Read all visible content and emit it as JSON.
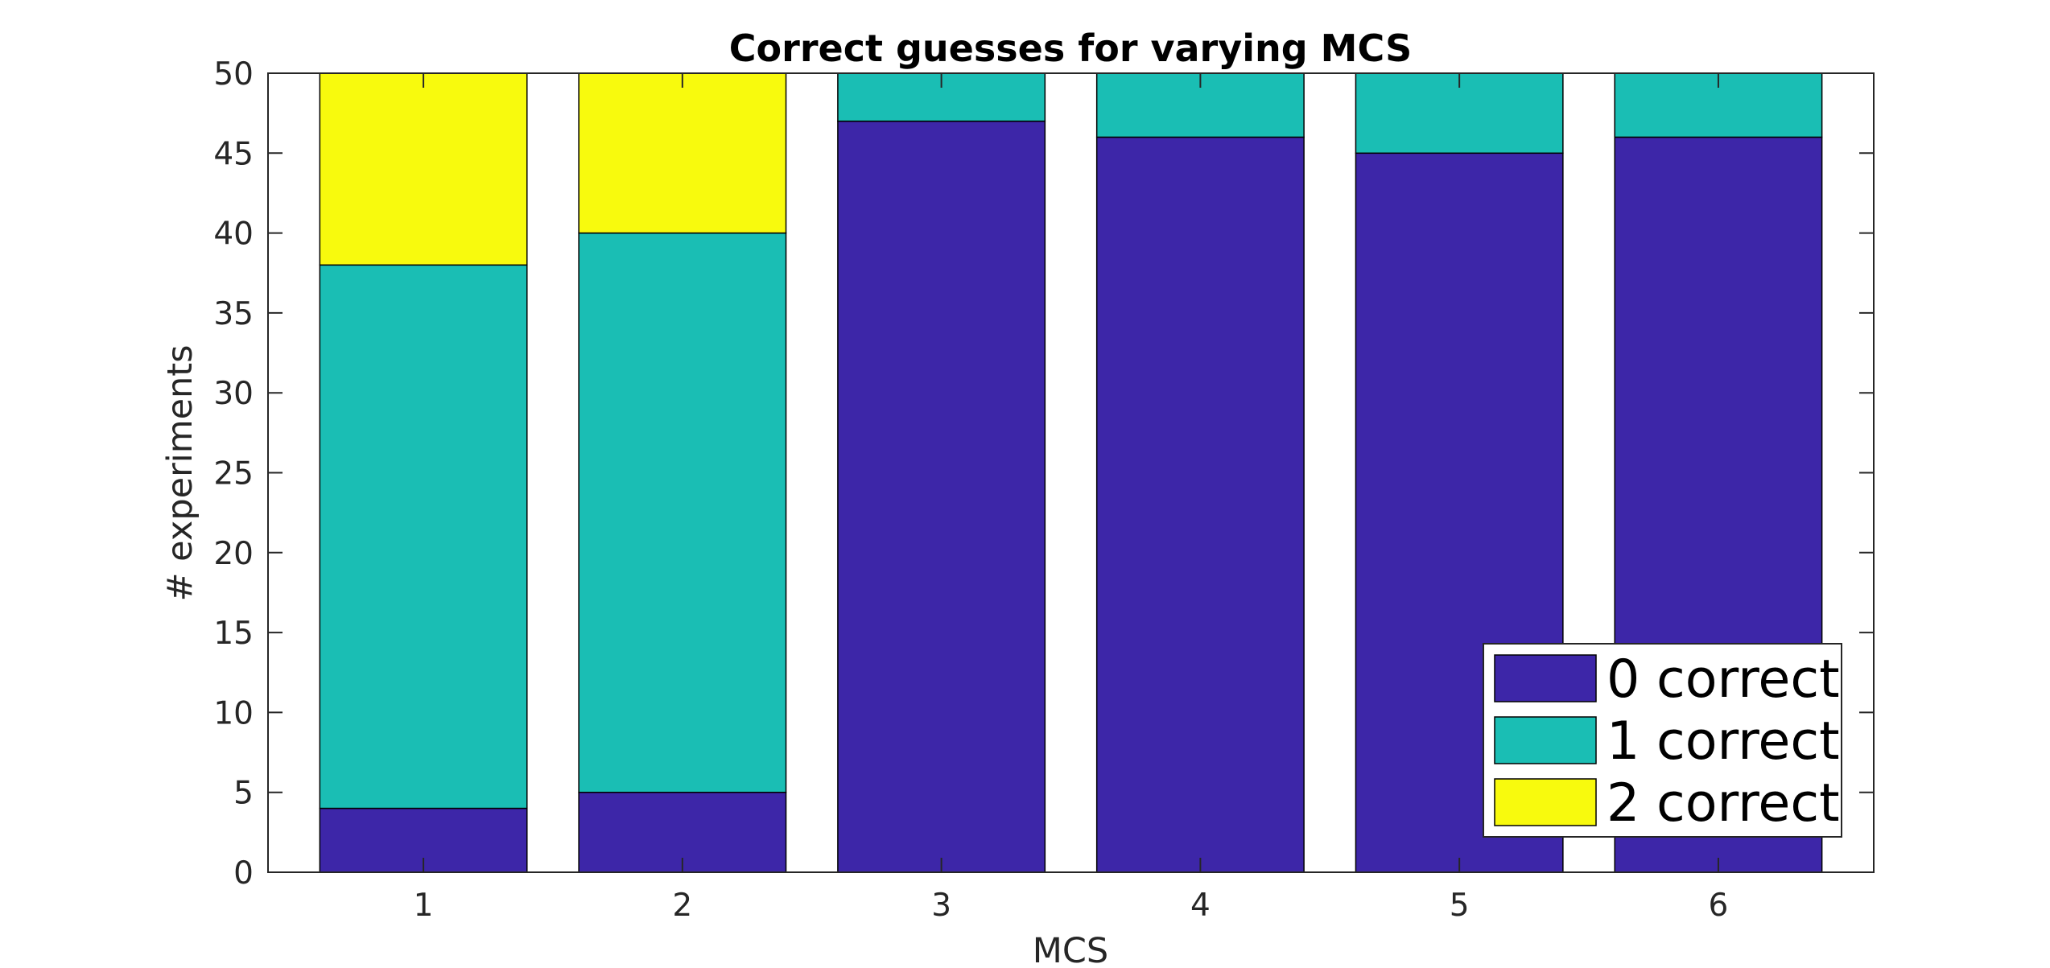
{
  "chart_data": {
    "type": "bar",
    "stacked": true,
    "title": "Correct guesses for varying MCS",
    "xlabel": "MCS",
    "ylabel": "# experiments",
    "categories": [
      "1",
      "2",
      "3",
      "4",
      "5",
      "6"
    ],
    "ylim": [
      0,
      50
    ],
    "yticks": [
      "0",
      "5",
      "10",
      "15",
      "20",
      "25",
      "30",
      "35",
      "40",
      "45",
      "50"
    ],
    "grid": false,
    "legend_position": "bottom-right",
    "series": [
      {
        "name": "0 correct",
        "color": "#3D26A8",
        "values": [
          4,
          5,
          47,
          46,
          45,
          46
        ]
      },
      {
        "name": "1 correct",
        "color": "#1ABEB4",
        "values": [
          34,
          35,
          3,
          4,
          5,
          4
        ]
      },
      {
        "name": "2 correct",
        "color": "#F8FA0D",
        "values": [
          12,
          10,
          0,
          0,
          0,
          0
        ]
      }
    ]
  }
}
